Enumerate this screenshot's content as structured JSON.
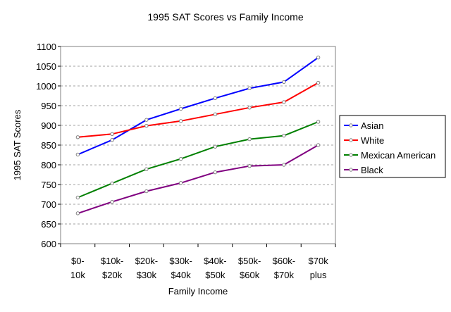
{
  "chart_data": {
    "type": "line",
    "title": "1995 SAT Scores vs Family Income",
    "xlabel": "Family Income",
    "ylabel": "1995 SAT Scores",
    "ylim": [
      600,
      1100
    ],
    "yticks": [
      600,
      650,
      700,
      750,
      800,
      850,
      900,
      950,
      1000,
      1050,
      1100
    ],
    "grid": "horizontal dashed",
    "legend_position": "right",
    "categories": [
      [
        "$0-",
        "10k"
      ],
      [
        "$10k-",
        "$20k"
      ],
      [
        "$20k-",
        "$30k"
      ],
      [
        "$30k-",
        "$40k"
      ],
      [
        "$40k-",
        "$50k"
      ],
      [
        "$50k-",
        "$60k"
      ],
      [
        "$60k-",
        "$70k"
      ],
      [
        "$70k",
        "plus"
      ]
    ],
    "series": [
      {
        "name": "Asian",
        "color": "#0000ff",
        "values": [
          826,
          863,
          914,
          942,
          969,
          994,
          1010,
          1072
        ]
      },
      {
        "name": "White",
        "color": "#ff0000",
        "values": [
          870,
          878,
          899,
          911,
          928,
          945,
          959,
          1008
        ]
      },
      {
        "name": "Mexican American",
        "color": "#008000",
        "values": [
          717,
          753,
          789,
          815,
          846,
          865,
          874,
          909
        ]
      },
      {
        "name": "Black",
        "color": "#800080",
        "values": [
          677,
          706,
          733,
          754,
          781,
          797,
          800,
          850
        ]
      }
    ]
  }
}
